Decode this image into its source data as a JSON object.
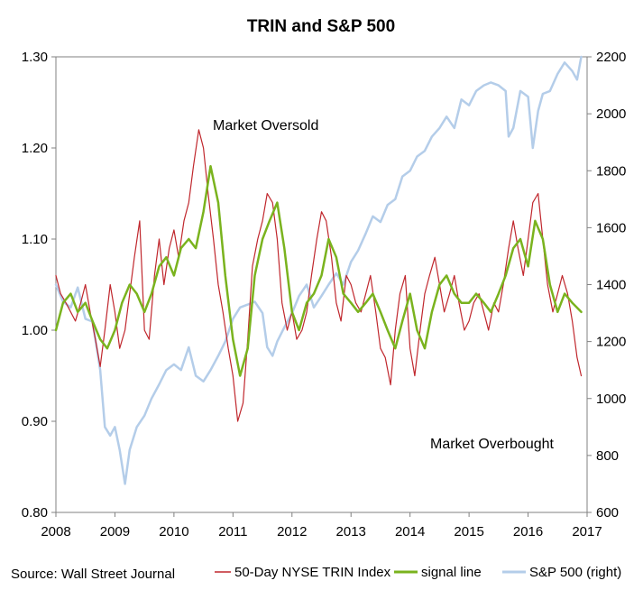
{
  "source": "Source: Wall Street Journal",
  "chart_data": {
    "type": "line",
    "title": "TRIN and S&P 500",
    "x_ticks": [
      "2008",
      "2009",
      "2010",
      "2011",
      "2012",
      "2013",
      "2014",
      "2015",
      "2016",
      "2017"
    ],
    "xlim": [
      2008,
      2017
    ],
    "y_left": {
      "lim": [
        0.8,
        1.3
      ],
      "ticks": [
        "0.80",
        "0.90",
        "1.00",
        "1.10",
        "1.20",
        "1.30"
      ]
    },
    "y_right": {
      "lim": [
        600,
        2200
      ],
      "ticks": [
        "600",
        "800",
        "1000",
        "1200",
        "1400",
        "1600",
        "1800",
        "2000",
        "2200"
      ]
    },
    "annotations": [
      "Market Oversold",
      "Market Overbought"
    ],
    "series": [
      {
        "name": "50-Day NYSE TRIN Index",
        "axis": "left",
        "color": "#c0272d",
        "x": [
          2008.0,
          2008.08,
          2008.17,
          2008.25,
          2008.33,
          2008.42,
          2008.5,
          2008.58,
          2008.67,
          2008.75,
          2008.83,
          2008.92,
          2009.0,
          2009.08,
          2009.17,
          2009.25,
          2009.33,
          2009.42,
          2009.5,
          2009.58,
          2009.67,
          2009.75,
          2009.83,
          2009.92,
          2010.0,
          2010.08,
          2010.17,
          2010.25,
          2010.33,
          2010.42,
          2010.5,
          2010.58,
          2010.67,
          2010.75,
          2010.83,
          2010.92,
          2011.0,
          2011.08,
          2011.17,
          2011.25,
          2011.33,
          2011.42,
          2011.5,
          2011.58,
          2011.67,
          2011.75,
          2011.83,
          2011.92,
          2012.0,
          2012.08,
          2012.17,
          2012.25,
          2012.33,
          2012.42,
          2012.5,
          2012.58,
          2012.67,
          2012.75,
          2012.83,
          2012.92,
          2013.0,
          2013.08,
          2013.17,
          2013.25,
          2013.33,
          2013.42,
          2013.5,
          2013.58,
          2013.67,
          2013.75,
          2013.83,
          2013.92,
          2014.0,
          2014.08,
          2014.17,
          2014.25,
          2014.33,
          2014.42,
          2014.5,
          2014.58,
          2014.67,
          2014.75,
          2014.83,
          2014.92,
          2015.0,
          2015.08,
          2015.17,
          2015.25,
          2015.33,
          2015.42,
          2015.5,
          2015.58,
          2015.67,
          2015.75,
          2015.83,
          2015.92,
          2016.0,
          2016.08,
          2016.17,
          2016.25,
          2016.33,
          2016.42,
          2016.5,
          2016.58,
          2016.67,
          2016.75,
          2016.83,
          2016.9
        ],
        "values": [
          1.06,
          1.04,
          1.03,
          1.02,
          1.01,
          1.03,
          1.05,
          1.02,
          0.99,
          0.96,
          1.0,
          1.05,
          1.02,
          0.98,
          1.0,
          1.04,
          1.08,
          1.12,
          1.0,
          0.99,
          1.06,
          1.1,
          1.05,
          1.09,
          1.11,
          1.08,
          1.12,
          1.14,
          1.18,
          1.22,
          1.2,
          1.15,
          1.1,
          1.05,
          1.02,
          0.98,
          0.95,
          0.9,
          0.92,
          0.99,
          1.07,
          1.1,
          1.12,
          1.15,
          1.14,
          1.1,
          1.03,
          1.0,
          1.02,
          0.99,
          1.0,
          1.02,
          1.06,
          1.1,
          1.13,
          1.12,
          1.08,
          1.03,
          1.01,
          1.06,
          1.05,
          1.03,
          1.02,
          1.04,
          1.06,
          1.02,
          0.98,
          0.97,
          0.94,
          1.0,
          1.04,
          1.06,
          0.98,
          0.95,
          1.0,
          1.04,
          1.06,
          1.08,
          1.05,
          1.02,
          1.04,
          1.06,
          1.03,
          1.0,
          1.01,
          1.03,
          1.04,
          1.02,
          1.0,
          1.03,
          1.02,
          1.05,
          1.09,
          1.12,
          1.09,
          1.06,
          1.1,
          1.14,
          1.15,
          1.1,
          1.05,
          1.02,
          1.04,
          1.06,
          1.04,
          1.01,
          0.97,
          0.95
        ]
      },
      {
        "name": "signal line",
        "axis": "left",
        "color": "#7ab31e",
        "x": [
          2008.0,
          2008.12,
          2008.25,
          2008.37,
          2008.5,
          2008.62,
          2008.75,
          2008.87,
          2009.0,
          2009.12,
          2009.25,
          2009.37,
          2009.5,
          2009.62,
          2009.75,
          2009.87,
          2010.0,
          2010.12,
          2010.25,
          2010.37,
          2010.5,
          2010.62,
          2010.75,
          2010.87,
          2011.0,
          2011.12,
          2011.25,
          2011.37,
          2011.5,
          2011.62,
          2011.75,
          2011.87,
          2012.0,
          2012.12,
          2012.25,
          2012.37,
          2012.5,
          2012.62,
          2012.75,
          2012.87,
          2013.0,
          2013.12,
          2013.25,
          2013.37,
          2013.5,
          2013.62,
          2013.75,
          2013.87,
          2014.0,
          2014.12,
          2014.25,
          2014.37,
          2014.5,
          2014.62,
          2014.75,
          2014.87,
          2015.0,
          2015.12,
          2015.25,
          2015.37,
          2015.5,
          2015.62,
          2015.75,
          2015.87,
          2016.0,
          2016.12,
          2016.25,
          2016.37,
          2016.5,
          2016.62,
          2016.75,
          2016.9
        ],
        "values": [
          1.0,
          1.03,
          1.04,
          1.02,
          1.03,
          1.01,
          0.99,
          0.98,
          1.0,
          1.03,
          1.05,
          1.04,
          1.02,
          1.04,
          1.07,
          1.08,
          1.06,
          1.09,
          1.1,
          1.09,
          1.13,
          1.18,
          1.14,
          1.06,
          0.99,
          0.95,
          0.98,
          1.06,
          1.1,
          1.12,
          1.14,
          1.09,
          1.02,
          1.0,
          1.03,
          1.04,
          1.06,
          1.1,
          1.08,
          1.04,
          1.03,
          1.02,
          1.03,
          1.04,
          1.02,
          1.0,
          0.98,
          1.01,
          1.04,
          1.0,
          0.98,
          1.02,
          1.05,
          1.06,
          1.04,
          1.03,
          1.03,
          1.04,
          1.03,
          1.02,
          1.04,
          1.06,
          1.09,
          1.1,
          1.07,
          1.12,
          1.1,
          1.05,
          1.02,
          1.04,
          1.03,
          1.02
        ]
      },
      {
        "name": "S&P 500 (right)",
        "axis": "right",
        "color": "#b4cde9",
        "x": [
          2008.0,
          2008.12,
          2008.25,
          2008.37,
          2008.5,
          2008.62,
          2008.75,
          2008.83,
          2008.92,
          2009.0,
          2009.08,
          2009.17,
          2009.25,
          2009.37,
          2009.5,
          2009.62,
          2009.75,
          2009.87,
          2010.0,
          2010.12,
          2010.25,
          2010.37,
          2010.5,
          2010.62,
          2010.75,
          2010.87,
          2011.0,
          2011.12,
          2011.25,
          2011.37,
          2011.5,
          2011.58,
          2011.67,
          2011.75,
          2011.87,
          2012.0,
          2012.12,
          2012.25,
          2012.37,
          2012.5,
          2012.62,
          2012.75,
          2012.87,
          2013.0,
          2013.12,
          2013.25,
          2013.37,
          2013.5,
          2013.62,
          2013.75,
          2013.87,
          2014.0,
          2014.12,
          2014.25,
          2014.37,
          2014.5,
          2014.62,
          2014.75,
          2014.87,
          2015.0,
          2015.12,
          2015.25,
          2015.37,
          2015.5,
          2015.62,
          2015.67,
          2015.75,
          2015.87,
          2016.0,
          2016.08,
          2016.17,
          2016.25,
          2016.37,
          2016.5,
          2016.62,
          2016.75,
          2016.83,
          2016.9
        ],
        "values": [
          1400,
          1340,
          1320,
          1390,
          1280,
          1270,
          1100,
          900,
          870,
          900,
          820,
          700,
          820,
          900,
          940,
          1000,
          1050,
          1100,
          1120,
          1100,
          1180,
          1080,
          1060,
          1100,
          1150,
          1200,
          1280,
          1320,
          1330,
          1340,
          1300,
          1180,
          1150,
          1200,
          1250,
          1300,
          1360,
          1400,
          1320,
          1360,
          1400,
          1440,
          1400,
          1480,
          1520,
          1580,
          1640,
          1620,
          1680,
          1700,
          1780,
          1800,
          1850,
          1870,
          1920,
          1950,
          1990,
          1950,
          2050,
          2030,
          2080,
          2100,
          2110,
          2100,
          2080,
          1920,
          1950,
          2080,
          2060,
          1880,
          2010,
          2070,
          2080,
          2140,
          2180,
          2150,
          2120,
          2200
        ]
      }
    ]
  }
}
